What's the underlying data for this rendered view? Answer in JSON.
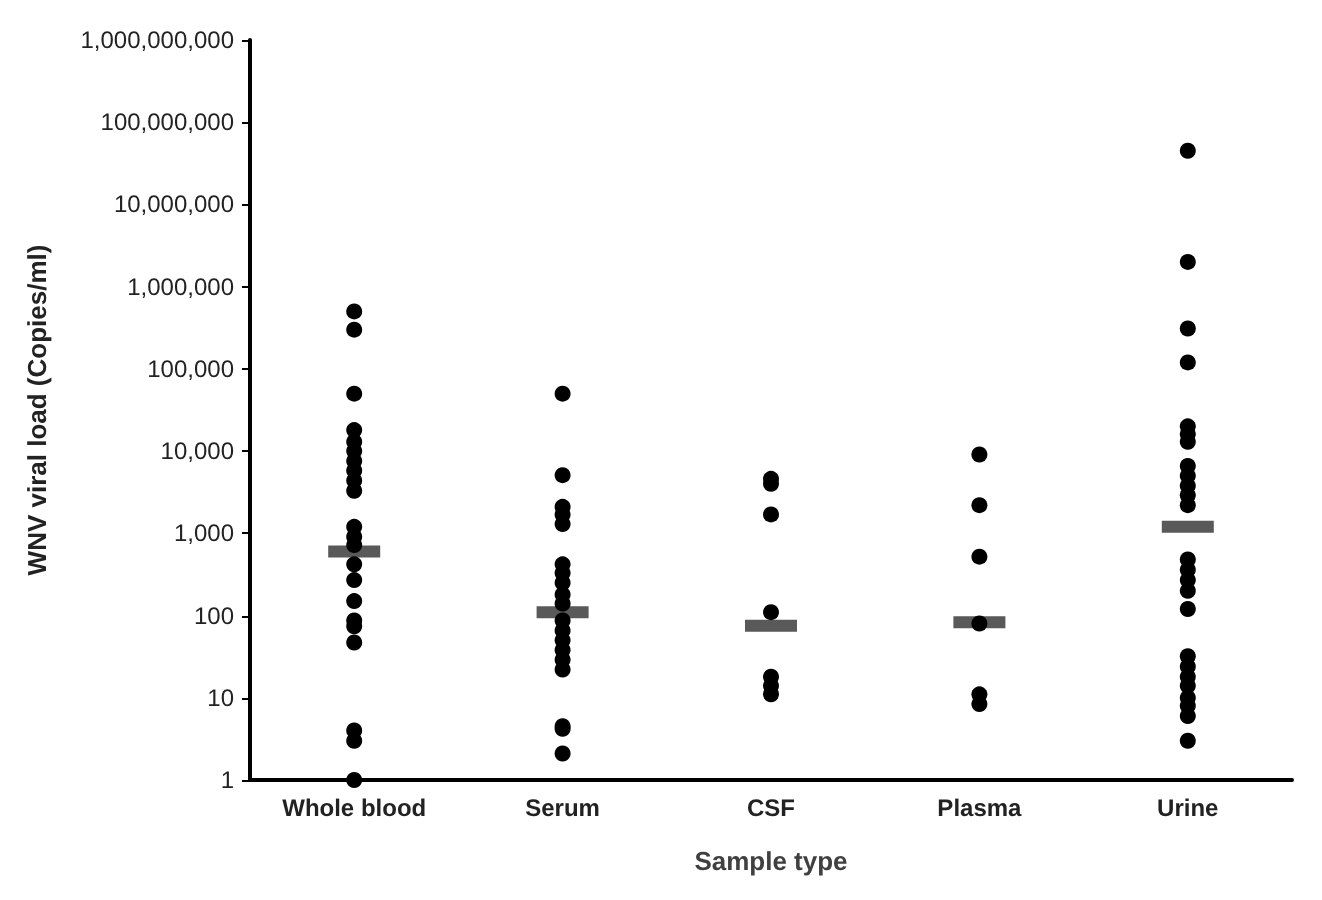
{
  "chart_data": {
    "type": "scatter",
    "xlabel": "Sample type",
    "ylabel": "WNV viral load (Copies/ml)",
    "categories": [
      "Whole blood",
      "Serum",
      "CSF",
      "Plasma",
      "Urine"
    ],
    "log": "y",
    "ylim": [
      1,
      1000000000
    ],
    "yticks": [
      1,
      10,
      100,
      {
        "value": 1000,
        "label": "1,000"
      },
      {
        "value": 10000,
        "label": "10,000"
      },
      {
        "value": 100000,
        "label": "100,000"
      },
      {
        "value": 1000000,
        "label": "1,000,000"
      },
      {
        "value": 10000000,
        "label": "10,000,000"
      },
      {
        "value": 100000000,
        "label": "100,000,000"
      },
      {
        "value": 1000000000,
        "label": "1,000,000,000"
      }
    ],
    "grid": false,
    "series": [
      {
        "color": "#000000",
        "marker": "circle",
        "x": [
          "Whole blood",
          "Whole blood",
          "Whole blood",
          "Whole blood",
          "Whole blood",
          "Whole blood",
          "Whole blood",
          "Whole blood",
          "Whole blood",
          "Whole blood",
          "Whole blood",
          "Whole blood",
          "Whole blood",
          "Whole blood",
          "Whole blood",
          "Whole blood",
          "Whole blood",
          "Whole blood",
          "Whole blood",
          "Whole blood",
          "Whole blood",
          "Whole blood",
          "Serum",
          "Serum",
          "Serum",
          "Serum",
          "Serum",
          "Serum",
          "Serum",
          "Serum",
          "Serum",
          "Serum",
          "Serum",
          "Serum",
          "Serum",
          "Serum",
          "Serum",
          "Serum",
          "Serum",
          "Serum",
          "Serum",
          "CSF",
          "CSF",
          "CSF",
          "CSF",
          "CSF",
          "CSF",
          "CSF",
          "Plasma",
          "Plasma",
          "Plasma",
          "Plasma",
          "Plasma",
          "Plasma",
          "Urine",
          "Urine",
          "Urine",
          "Urine",
          "Urine",
          "Urine",
          "Urine",
          "Urine",
          "Urine",
          "Urine",
          "Urine",
          "Urine",
          "Urine",
          "Urine",
          "Urine",
          "Urine",
          "Urine",
          "Urine",
          "Urine",
          "Urine",
          "Urine",
          "Urine",
          "Urine",
          "Urine",
          "Urine"
        ],
        "values": [
          500000,
          300000,
          50000,
          18000,
          13000,
          10000,
          7600,
          5800,
          4400,
          3300,
          1200,
          910,
          720,
          420,
          270,
          150,
          87,
          74,
          47,
          4,
          3,
          1,
          50000,
          5100,
          2100,
          1700,
          1300,
          420,
          330,
          250,
          180,
          140,
          87,
          66,
          50,
          38,
          29,
          22,
          4.5,
          4.2,
          2.1,
          4600,
          4000,
          1700,
          110,
          18,
          14,
          11,
          9100,
          2200,
          520,
          80,
          11,
          8.4,
          45000000,
          2000000,
          310000,
          120000,
          20000,
          16000,
          13000,
          6600,
          5000,
          3800,
          2900,
          2200,
          480,
          360,
          270,
          200,
          120,
          32,
          24,
          18,
          14,
          10,
          8,
          6,
          3
        ]
      },
      {
        "type": "box",
        "color": "#595959",
        "boxes": [
          {
            "low": 600,
            "q1": 600,
            "median": 600,
            "q3": 600,
            "high": 600
          },
          {
            "low": 110,
            "q1": 110,
            "median": 110,
            "q3": 110,
            "high": 110
          },
          {
            "low": 75,
            "q1": 75,
            "median": 75,
            "q3": 75,
            "high": 75
          },
          {
            "low": 83,
            "q1": 83,
            "median": 83,
            "q3": 83,
            "high": 83
          },
          {
            "low": 1200,
            "q1": 1200,
            "median": 1200,
            "q3": 1200,
            "high": 1200
          }
        ]
      }
    ]
  }
}
